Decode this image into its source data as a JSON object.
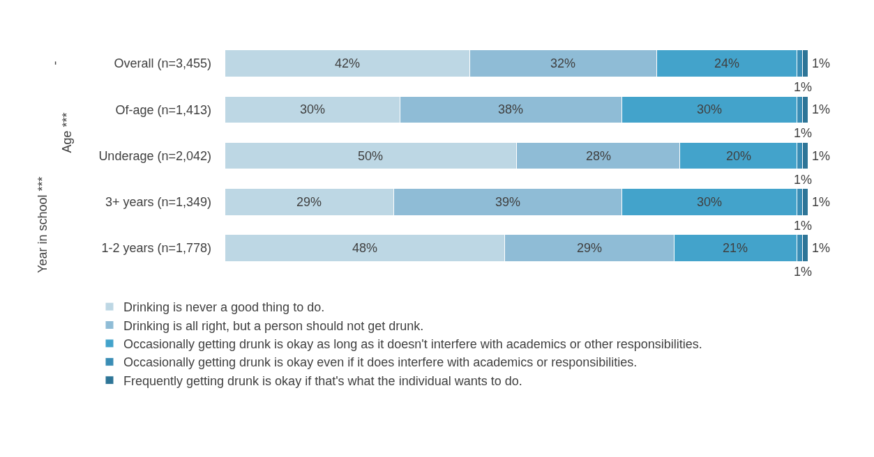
{
  "chart_data": {
    "type": "bar",
    "orientation": "horizontal",
    "stacked": true,
    "legend": "bottom",
    "categories": [
      "Overall (n=3,455)",
      "Of-age (n=1,413)",
      "Underage (n=2,042)",
      "3+ years (n=1,349)",
      "1-2 years (n=1,778)"
    ],
    "series": [
      {
        "name": "Drinking is never a good thing to do.",
        "color": "#bdd7e4",
        "values": [
          42,
          30,
          50,
          29,
          48
        ],
        "value_labels": [
          "42%",
          "30%",
          "50%",
          "29%",
          "48%"
        ]
      },
      {
        "name": "Drinking is all right, but a person should not get drunk.",
        "color": "#8fbcd6",
        "values": [
          32,
          38,
          28,
          39,
          29
        ],
        "value_labels": [
          "32%",
          "38%",
          "28%",
          "39%",
          "29%"
        ]
      },
      {
        "name": "Occasionally getting drunk is okay as long as it doesn't interfere with academics or other responsibilities.",
        "color": "#43a3cb",
        "values": [
          24,
          30,
          20,
          30,
          21
        ],
        "value_labels": [
          "24%",
          "30%",
          "20%",
          "30%",
          "21%"
        ]
      },
      {
        "name": "Occasionally getting drunk is okay even if it does interfere with academics or responsibilities.",
        "color": "#3a8db5",
        "values": [
          1,
          1,
          1,
          1,
          1
        ],
        "value_labels": [
          "1%",
          "1%",
          "1%",
          "1%",
          "1%"
        ]
      },
      {
        "name": "Frequently getting drunk is okay if that's what the individual wants to do.",
        "color": "#2e7597",
        "values": [
          1,
          1,
          1,
          1,
          1
        ],
        "value_labels": [
          "1%",
          "1%",
          "1%",
          "1%",
          "1%"
        ]
      }
    ],
    "annotations": [
      "-",
      "Age ***",
      "Year in school ***"
    ]
  }
}
